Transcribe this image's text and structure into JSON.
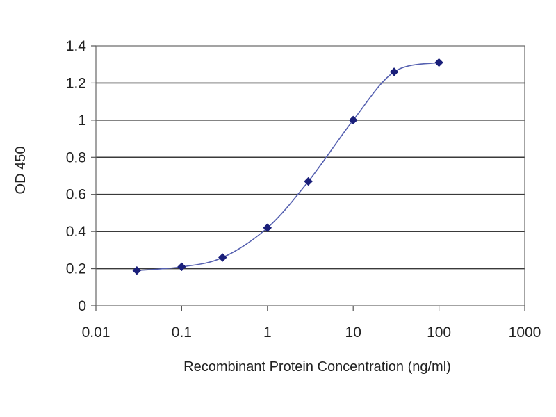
{
  "chart_data": {
    "type": "line",
    "title": "",
    "xlabel": "Recombinant Protein Concentration (ng/ml)",
    "ylabel": "OD 450",
    "x_scale": "log",
    "xlim": [
      0.01,
      1000
    ],
    "ylim": [
      0,
      1.4
    ],
    "x_ticks": [
      "0.01",
      "0.1",
      "1",
      "10",
      "100",
      "1000"
    ],
    "y_ticks": [
      "0",
      "0.2",
      "0.4",
      "0.6",
      "0.8",
      "1",
      "1.2",
      "1.4"
    ],
    "grid": "horizontal",
    "legend": "none",
    "series": [
      {
        "color": "#1a1f7a",
        "marker": "diamond",
        "x": [
          0.03,
          0.1,
          0.3,
          1,
          3,
          10,
          30,
          100
        ],
        "y": [
          0.19,
          0.21,
          0.26,
          0.42,
          0.67,
          1.0,
          1.26,
          1.31
        ]
      }
    ]
  }
}
